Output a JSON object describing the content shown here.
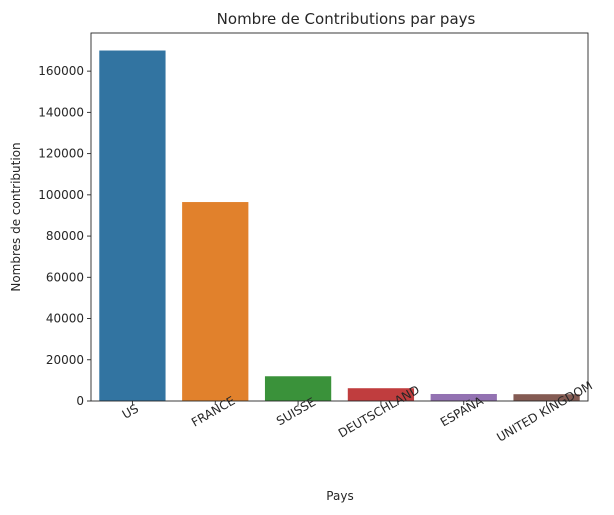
{
  "chart_data": {
    "type": "bar",
    "title": "Nombre de Contributions par pays",
    "xlabel": "Pays",
    "ylabel": "Nombres de contribution",
    "categories": [
      "US",
      "FRANCE",
      "SUISSE",
      "DEUTSCHLAND",
      "ESPAÑA",
      "UNITED KINGDOM"
    ],
    "values": [
      170000,
      96500,
      12000,
      6200,
      3400,
      3300
    ],
    "colors": [
      "#3274a1",
      "#e1812c",
      "#3a923a",
      "#c03d3e",
      "#9372b2",
      "#845b53"
    ],
    "ylim": [
      0,
      178500
    ],
    "yticks": [
      0,
      20000,
      40000,
      60000,
      80000,
      100000,
      120000,
      140000,
      160000
    ],
    "grid": false,
    "legend": "none"
  }
}
